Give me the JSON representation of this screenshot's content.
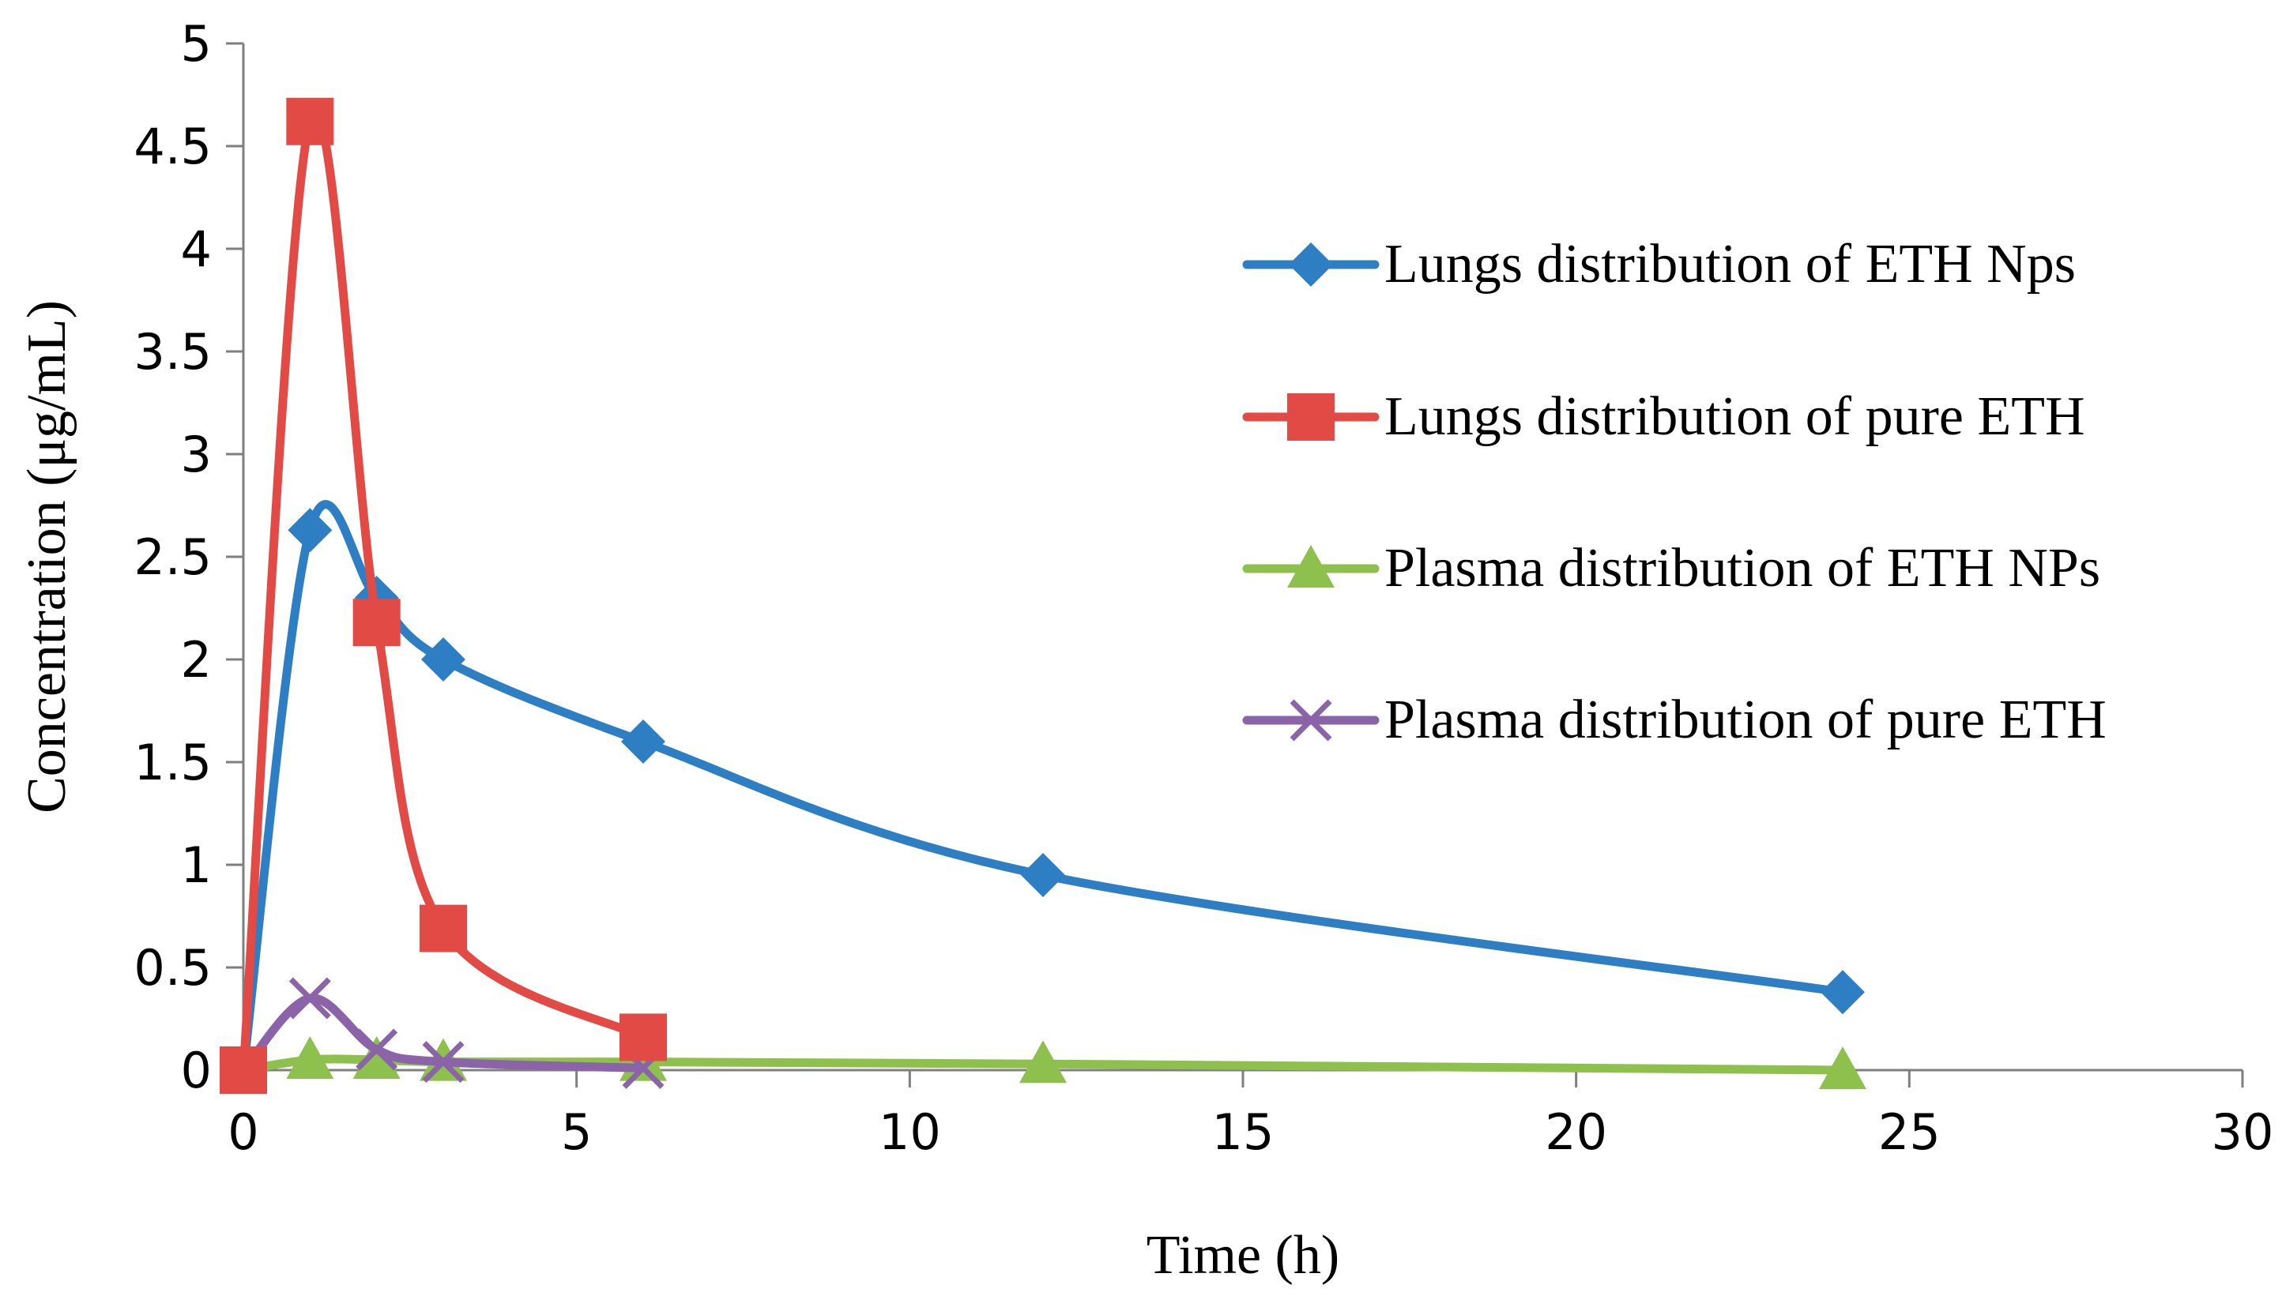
{
  "chart_data": {
    "type": "line",
    "title": "",
    "xlabel": "Time (h)",
    "ylabel": "Concentration (μg/mL)",
    "xlim": [
      0,
      30
    ],
    "ylim": [
      0,
      5
    ],
    "xticks": [
      0,
      5,
      10,
      15,
      20,
      25,
      30
    ],
    "yticks": [
      0,
      0.5,
      1,
      1.5,
      2,
      2.5,
      3,
      3.5,
      4,
      4.5,
      5
    ],
    "xtick_labels": [
      "0",
      "5",
      "10",
      "15",
      "20",
      "25",
      "30"
    ],
    "ytick_labels": [
      "0",
      "0.5",
      "1",
      "1.5",
      "2",
      "2.5",
      "3",
      "3.5",
      "4",
      "4.5",
      "5"
    ],
    "grid": false,
    "legend_position": "right",
    "series": [
      {
        "name": "Lungs distribution of ETH Nps",
        "color": "#2E7EC3",
        "marker": "diamond",
        "x": [
          0,
          1,
          2,
          3,
          6,
          12,
          24
        ],
        "y": [
          0,
          2.63,
          2.3,
          2.0,
          1.6,
          0.95,
          0.38
        ]
      },
      {
        "name": "Lungs distribution of pure ETH",
        "color": "#E24A45",
        "marker": "square",
        "x": [
          0,
          1,
          2,
          3,
          6
        ],
        "y": [
          0,
          4.62,
          2.18,
          0.69,
          0.16
        ]
      },
      {
        "name": "Plasma distribution of ETH NPs",
        "color": "#8DC04C",
        "marker": "triangle",
        "x": [
          0,
          1,
          2,
          3,
          6,
          12,
          24
        ],
        "y": [
          0,
          0.05,
          0.05,
          0.04,
          0.04,
          0.03,
          0.0
        ]
      },
      {
        "name": "Plasma distribution of pure ETH",
        "color": "#8B63A8",
        "marker": "x",
        "x": [
          0,
          1,
          2,
          3,
          6
        ],
        "y": [
          0,
          0.35,
          0.1,
          0.04,
          0.01
        ]
      }
    ]
  }
}
